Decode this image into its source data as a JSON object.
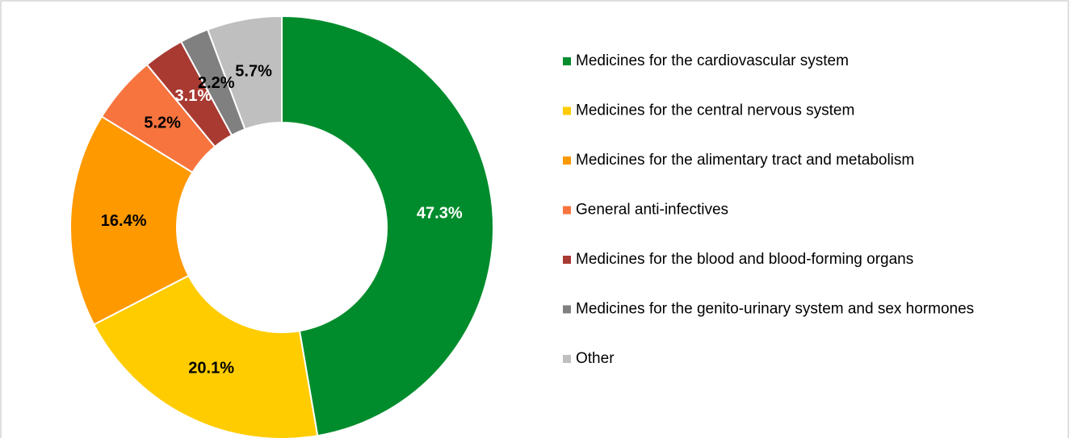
{
  "chart_data": {
    "type": "donut",
    "categories": [
      "Medicines for the cardiovascular system",
      "Medicines for the central nervous system",
      "Medicines for the alimentary tract and metabolism",
      "General anti-infectives",
      "Medicines for the blood and blood-forming organs",
      "Medicines for the genito-urinary system and sex hormones",
      "Other"
    ],
    "values": [
      47.3,
      20.1,
      16.4,
      5.2,
      3.1,
      2.2,
      5.7
    ],
    "value_labels": [
      "47.3%",
      "20.1%",
      "16.4%",
      "5.2%",
      "3.1%",
      "2.2%",
      "5.7%"
    ],
    "colors": [
      "#008c2c",
      "#ffcc00",
      "#ff9900",
      "#f7743f",
      "#a83a32",
      "#808080",
      "#bfbfbf"
    ],
    "legend": "right"
  }
}
